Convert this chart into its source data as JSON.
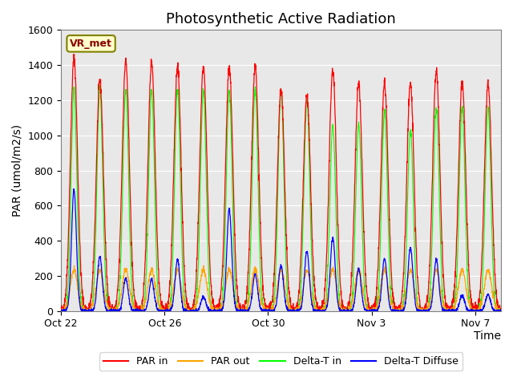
{
  "title": "Photosynthetic Active Radiation",
  "ylabel": "PAR (umol/m2/s)",
  "xlabel": "Time",
  "legend_label": "VR_met",
  "series_labels": [
    "PAR in",
    "PAR out",
    "Delta-T in",
    "Delta-T Diffuse"
  ],
  "series_colors": [
    "red",
    "orange",
    "lime",
    "blue"
  ],
  "ylim": [
    0,
    1600
  ],
  "xlim_days": [
    0,
    17
  ],
  "n_days": 17,
  "background_color": "#e8e8e8",
  "title_fontsize": 13,
  "axis_label_fontsize": 10,
  "tick_fontsize": 9,
  "xtick_labels": [
    "Oct 22",
    "Oct 26",
    "Oct 30",
    "Nov 3",
    "Nov 7"
  ],
  "xtick_positions": [
    0,
    4,
    8,
    12,
    16
  ]
}
